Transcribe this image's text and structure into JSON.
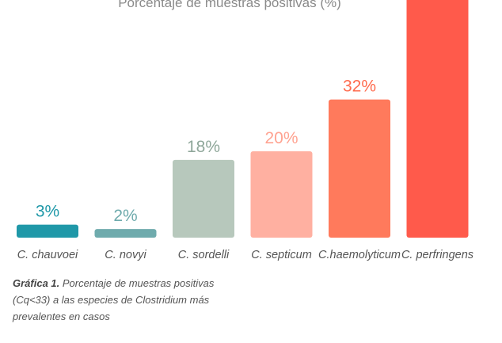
{
  "chart_data": {
    "type": "bar",
    "title": "Porcentaje de muestras positivas (%)",
    "categories": [
      "C. chauvoei",
      "C. novyi",
      "C. sordelli",
      "C. septicum",
      "C.haemolyticum",
      "C. perfringens"
    ],
    "values": [
      3,
      2,
      18,
      20,
      32,
      60
    ],
    "data_labels": [
      "3%",
      "2%",
      "18%",
      "20%",
      "32%",
      ""
    ],
    "colors": [
      "#1f98a8",
      "#6fabad",
      "#b7c8bc",
      "#ffb0a1",
      "#ff7a5c",
      "#ff5a4b"
    ],
    "ylim": [
      0,
      60
    ],
    "grid": false,
    "legend": "none"
  },
  "caption": {
    "lead": "Gráfica 1.",
    "text": " Porcentaje de muestras positivas (Cq<33) a las especies de Clostridium más prevalentes en casos"
  }
}
